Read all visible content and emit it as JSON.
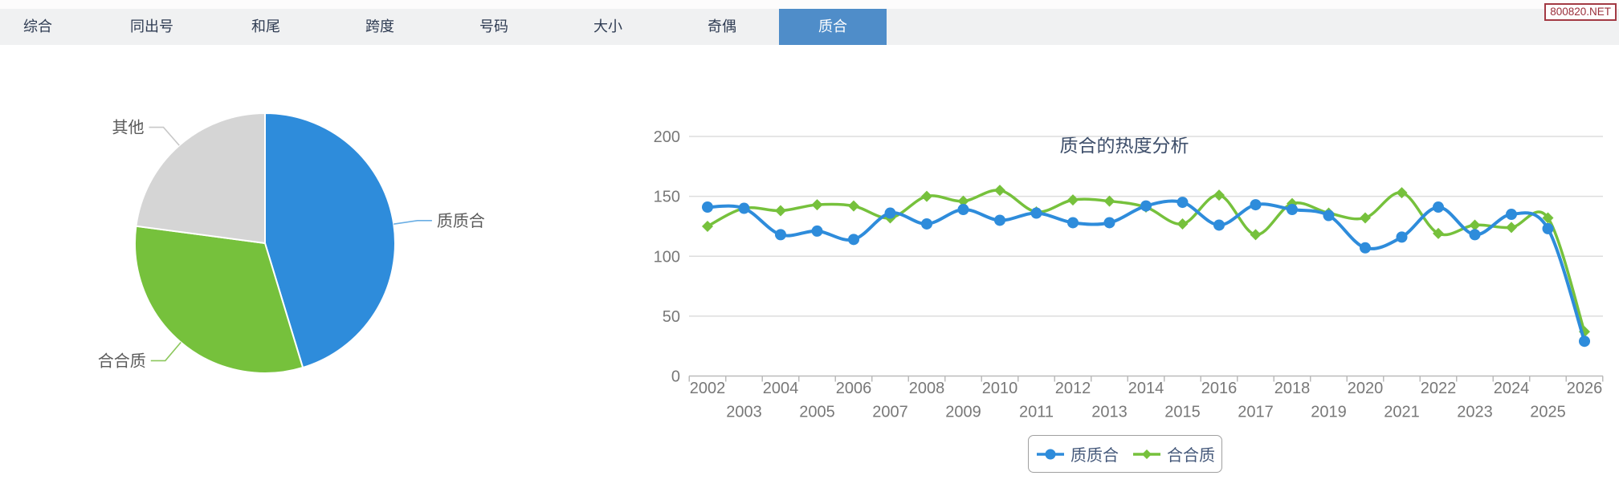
{
  "page": {
    "badge": "800820.NET"
  },
  "tabs": {
    "items": [
      {
        "key": "zonghe",
        "label": "综合",
        "selected": false
      },
      {
        "key": "tongchuhao",
        "label": "同出号",
        "selected": false
      },
      {
        "key": "hewei",
        "label": "和尾",
        "selected": false
      },
      {
        "key": "kuadu",
        "label": "跨度",
        "selected": false
      },
      {
        "key": "haoma",
        "label": "号码",
        "selected": false
      },
      {
        "key": "daxiao",
        "label": "大小",
        "selected": false
      },
      {
        "key": "qiou",
        "label": "奇偶",
        "selected": false
      },
      {
        "key": "zhihe",
        "label": "质合",
        "selected": true
      }
    ]
  },
  "chart_data": [
    {
      "type": "pie",
      "slices": [
        {
          "key": "zhizhihe",
          "label": "质质合",
          "value": 45.3,
          "color": "#2e8cdb",
          "leader_color": "#6aaee4"
        },
        {
          "key": "hehezhi",
          "label": "合合质",
          "value": 31.8,
          "color": "#76c13c",
          "leader_color": "#8cc75c"
        },
        {
          "key": "qita",
          "label": "其他",
          "value": 22.9,
          "color": "#d5d5d5",
          "leader_color": "#c8c8c8"
        }
      ]
    },
    {
      "type": "line",
      "title": "质合的热度分析",
      "x": [
        2002,
        2003,
        2004,
        2005,
        2006,
        2007,
        2008,
        2009,
        2010,
        2011,
        2012,
        2013,
        2014,
        2015,
        2016,
        2017,
        2018,
        2019,
        2020,
        2021,
        2022,
        2023,
        2024,
        2025,
        2026
      ],
      "ylim": [
        0,
        200
      ],
      "yticks": [
        0,
        50,
        100,
        150,
        200
      ],
      "grid": true,
      "legend_position": "bottom",
      "series": [
        {
          "name": "质质合",
          "color": "#2e8cdb",
          "marker": "circle",
          "values": [
            141,
            140,
            118,
            121,
            114,
            136,
            127,
            139,
            130,
            136,
            128,
            128,
            142,
            145,
            126,
            143,
            139,
            134,
            107,
            116,
            141,
            118,
            135,
            123,
            29
          ]
        },
        {
          "name": "合合质",
          "color": "#76c13c",
          "marker": "diamond",
          "values": [
            125,
            140,
            138,
            143,
            142,
            132,
            150,
            146,
            155,
            137,
            147,
            146,
            141,
            127,
            151,
            118,
            144,
            136,
            132,
            153,
            119,
            126,
            124,
            132,
            37
          ]
        }
      ]
    }
  ]
}
